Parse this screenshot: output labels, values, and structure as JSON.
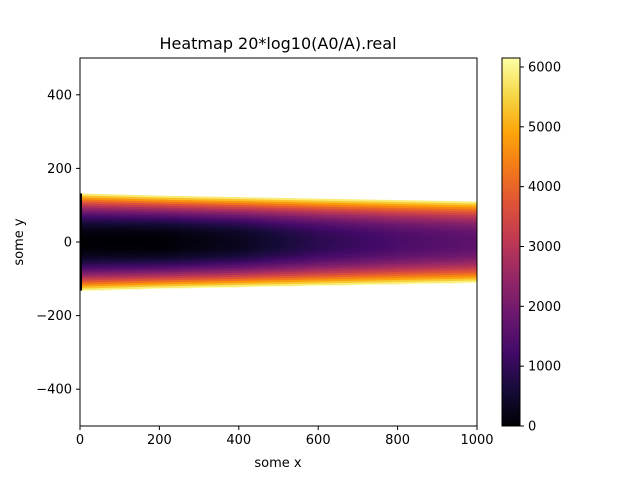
{
  "chart_data": {
    "type": "heatmap",
    "title": "Heatmap 20*log10(A0/A).real",
    "xlabel": "some x",
    "ylabel": "some y",
    "xlim": [
      0,
      1000
    ],
    "ylim": [
      -500,
      500
    ],
    "x_ticks": [
      0,
      200,
      400,
      600,
      800,
      1000
    ],
    "x_tick_labels": [
      "0",
      "200",
      "400",
      "600",
      "800",
      "1000"
    ],
    "y_ticks": [
      -400,
      -200,
      0,
      200,
      400
    ],
    "y_tick_labels": [
      "−400",
      "−200",
      "0",
      "200",
      "400"
    ],
    "colormap": "inferno",
    "colorbar": {
      "min": 0,
      "max": 6150,
      "ticks": [
        0,
        1000,
        2000,
        3000,
        4000,
        5000,
        6000
      ],
      "tick_labels": [
        "0",
        "1000",
        "2000",
        "3000",
        "4000",
        "5000",
        "6000"
      ]
    },
    "field": {
      "description_points": [
        {
          "x": 0,
          "half_width": 132,
          "center_value": 0,
          "edge_value": 6150
        },
        {
          "x": 200,
          "half_width": 126,
          "center_value": 0,
          "edge_value": 6150
        },
        {
          "x": 400,
          "half_width": 122,
          "center_value": 300,
          "edge_value": 6150
        },
        {
          "x": 600,
          "half_width": 118,
          "center_value": 900,
          "edge_value": 6150
        },
        {
          "x": 800,
          "half_width": 114,
          "center_value": 1350,
          "edge_value": 6150
        },
        {
          "x": 1000,
          "half_width": 110,
          "center_value": 1650,
          "edge_value": 6150
        }
      ]
    }
  }
}
